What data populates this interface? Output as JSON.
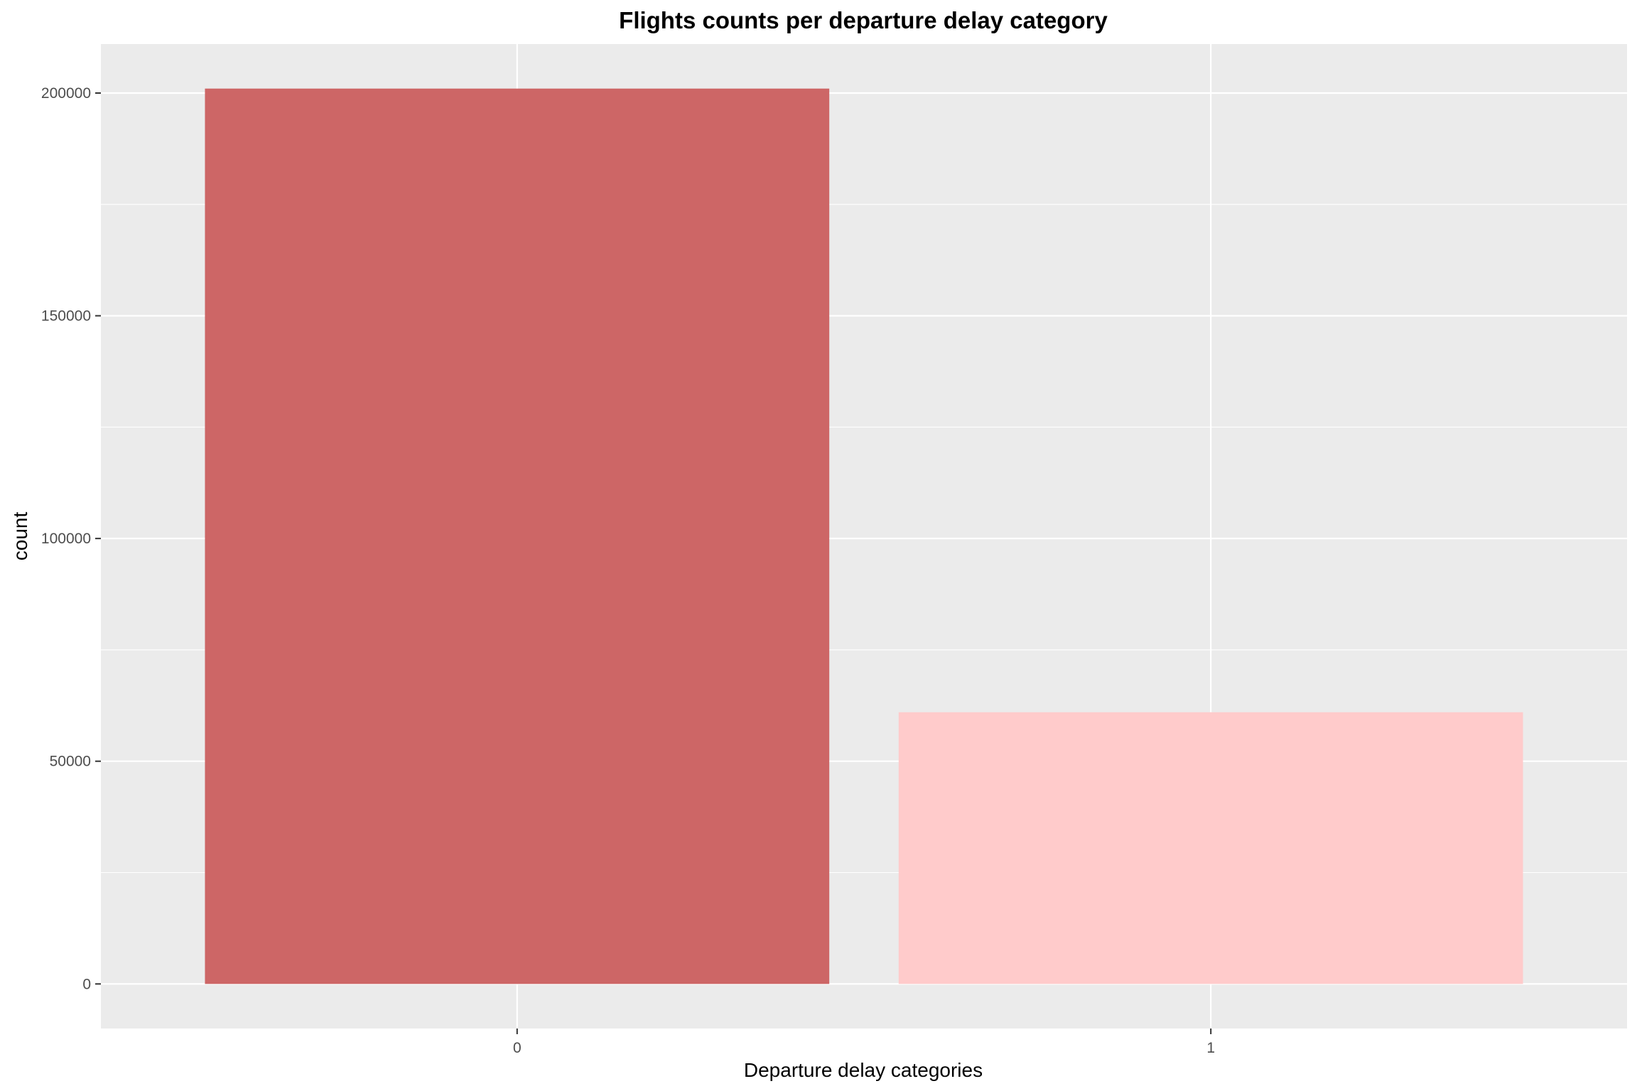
{
  "chart_data": {
    "type": "bar",
    "title": "Flights counts per departure delay category",
    "xlabel": "Departure delay categories",
    "ylabel": "count",
    "categories": [
      "0",
      "1"
    ],
    "values": [
      201000,
      61000
    ],
    "bar_colors": [
      "#CD6666",
      "#FFCBCB"
    ],
    "ylim": [
      -10000,
      211000
    ],
    "y_ticks": [
      0,
      50000,
      100000,
      150000,
      200000
    ],
    "y_tick_labels": [
      "0",
      "50000",
      "100000",
      "150000",
      "200000"
    ],
    "y_minor_ticks": [
      25000,
      75000,
      125000,
      175000
    ],
    "grid": true,
    "legend": "none",
    "panel_background": "#EBEBEB",
    "grid_color": "#FFFFFF"
  }
}
